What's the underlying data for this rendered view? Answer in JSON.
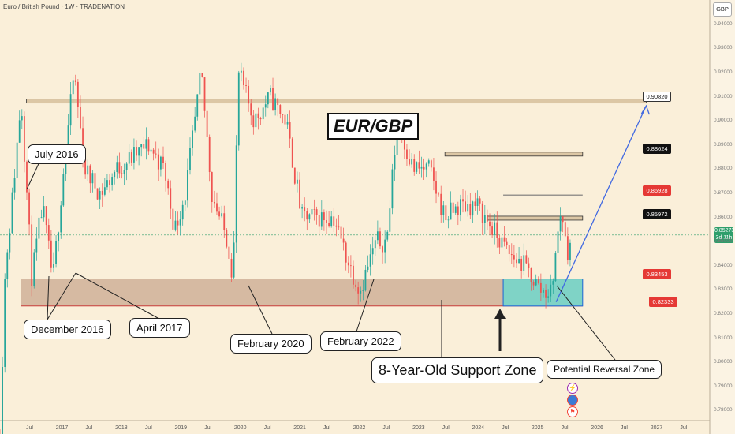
{
  "header": {
    "title": "Euro / British Pound · 1W · TRADENATION",
    "currency": "GBP"
  },
  "annotations": {
    "pair": "EUR/GBP",
    "july_2016": "July 2016",
    "dec_2016": "December 2016",
    "apr_2017": "April 2017",
    "feb_2020": "February 2020",
    "feb_2022": "February 2022",
    "support_zone": "8-Year-Old Support Zone",
    "reversal_zone": "Potential Reversal Zone"
  },
  "price_labels": {
    "p0908": "0.90820",
    "p0886": "0.88624",
    "p0869": "0.86928",
    "p0859": "0.85972",
    "current": "0.85273",
    "countdown": "3d 11h",
    "p0834": "0.83453",
    "p0823": "0.82333"
  },
  "y_ticks": [
    "0.94000",
    "0.93000",
    "0.92000",
    "0.91000",
    "0.90000",
    "0.89000",
    "0.88000",
    "0.87000",
    "0.86000",
    "0.85000",
    "0.84000",
    "0.83000",
    "0.82000",
    "0.81000",
    "0.80000",
    "0.79000",
    "0.78000"
  ],
  "x_ticks": [
    "Jul",
    "2017",
    "Jul",
    "2018",
    "Jul",
    "2019",
    "Jul",
    "2020",
    "Jul",
    "2021",
    "Jul",
    "2022",
    "Jul",
    "2023",
    "Jul",
    "2024",
    "Jul",
    "2025",
    "Jul",
    "2026",
    "Jul",
    "2027",
    "Jul"
  ],
  "colors": {
    "up": "#26a69a",
    "down": "#ef5350",
    "zone": "#c9a88f",
    "prz": "#7fd3c6",
    "arrow": "#4169e1",
    "background": "#faefd9"
  },
  "chart_data": {
    "type": "candlestick",
    "title": "Euro / British Pound · 1W · TRADENATION",
    "ylim": [
      0.775,
      0.945
    ],
    "x_range": [
      "2016-06",
      "2027-08"
    ],
    "levels": [
      0.9082,
      0.88624,
      0.86928,
      0.85972,
      0.85273,
      0.83453,
      0.82333
    ],
    "support_zone": [
      0.82333,
      0.83453
    ],
    "close_path": [
      [
        "2016-06",
        0.77
      ],
      [
        "2016-07",
        0.84
      ],
      [
        "2016-08",
        0.86
      ],
      [
        "2016-10",
        0.91
      ],
      [
        "2016-12",
        0.835
      ],
      [
        "2017-02",
        0.865
      ],
      [
        "2017-04",
        0.834
      ],
      [
        "2017-06",
        0.88
      ],
      [
        "2017-08",
        0.92
      ],
      [
        "2017-10",
        0.88
      ],
      [
        "2018-01",
        0.87
      ],
      [
        "2018-04",
        0.88
      ],
      [
        "2018-07",
        0.885
      ],
      [
        "2018-10",
        0.89
      ],
      [
        "2019-01",
        0.88
      ],
      [
        "2019-03",
        0.855
      ],
      [
        "2019-05",
        0.87
      ],
      [
        "2019-08",
        0.92
      ],
      [
        "2019-10",
        0.87
      ],
      [
        "2020-01",
        0.85
      ],
      [
        "2020-02",
        0.835
      ],
      [
        "2020-03",
        0.92
      ],
      [
        "2020-06",
        0.9
      ],
      [
        "2020-09",
        0.91
      ],
      [
        "2020-12",
        0.9
      ],
      [
        "2021-03",
        0.86
      ],
      [
        "2021-06",
        0.86
      ],
      [
        "2021-09",
        0.86
      ],
      [
        "2021-12",
        0.84
      ],
      [
        "2022-02",
        0.83
      ],
      [
        "2022-05",
        0.85
      ],
      [
        "2022-07",
        0.85
      ],
      [
        "2022-09",
        0.9
      ],
      [
        "2022-12",
        0.88
      ],
      [
        "2023-03",
        0.88
      ],
      [
        "2023-06",
        0.86
      ],
      [
        "2023-09",
        0.865
      ],
      [
        "2023-12",
        0.865
      ],
      [
        "2024-03",
        0.855
      ],
      [
        "2024-06",
        0.845
      ],
      [
        "2024-09",
        0.84
      ],
      [
        "2024-12",
        0.83
      ],
      [
        "2025-02",
        0.829
      ],
      [
        "2025-04",
        0.865
      ],
      [
        "2025-05",
        0.845
      ],
      [
        "2025-06",
        0.85273
      ]
    ],
    "projection": {
      "from": [
        "2025-03",
        0.825
      ],
      "to": [
        "2026-08",
        0.9082
      ]
    }
  }
}
